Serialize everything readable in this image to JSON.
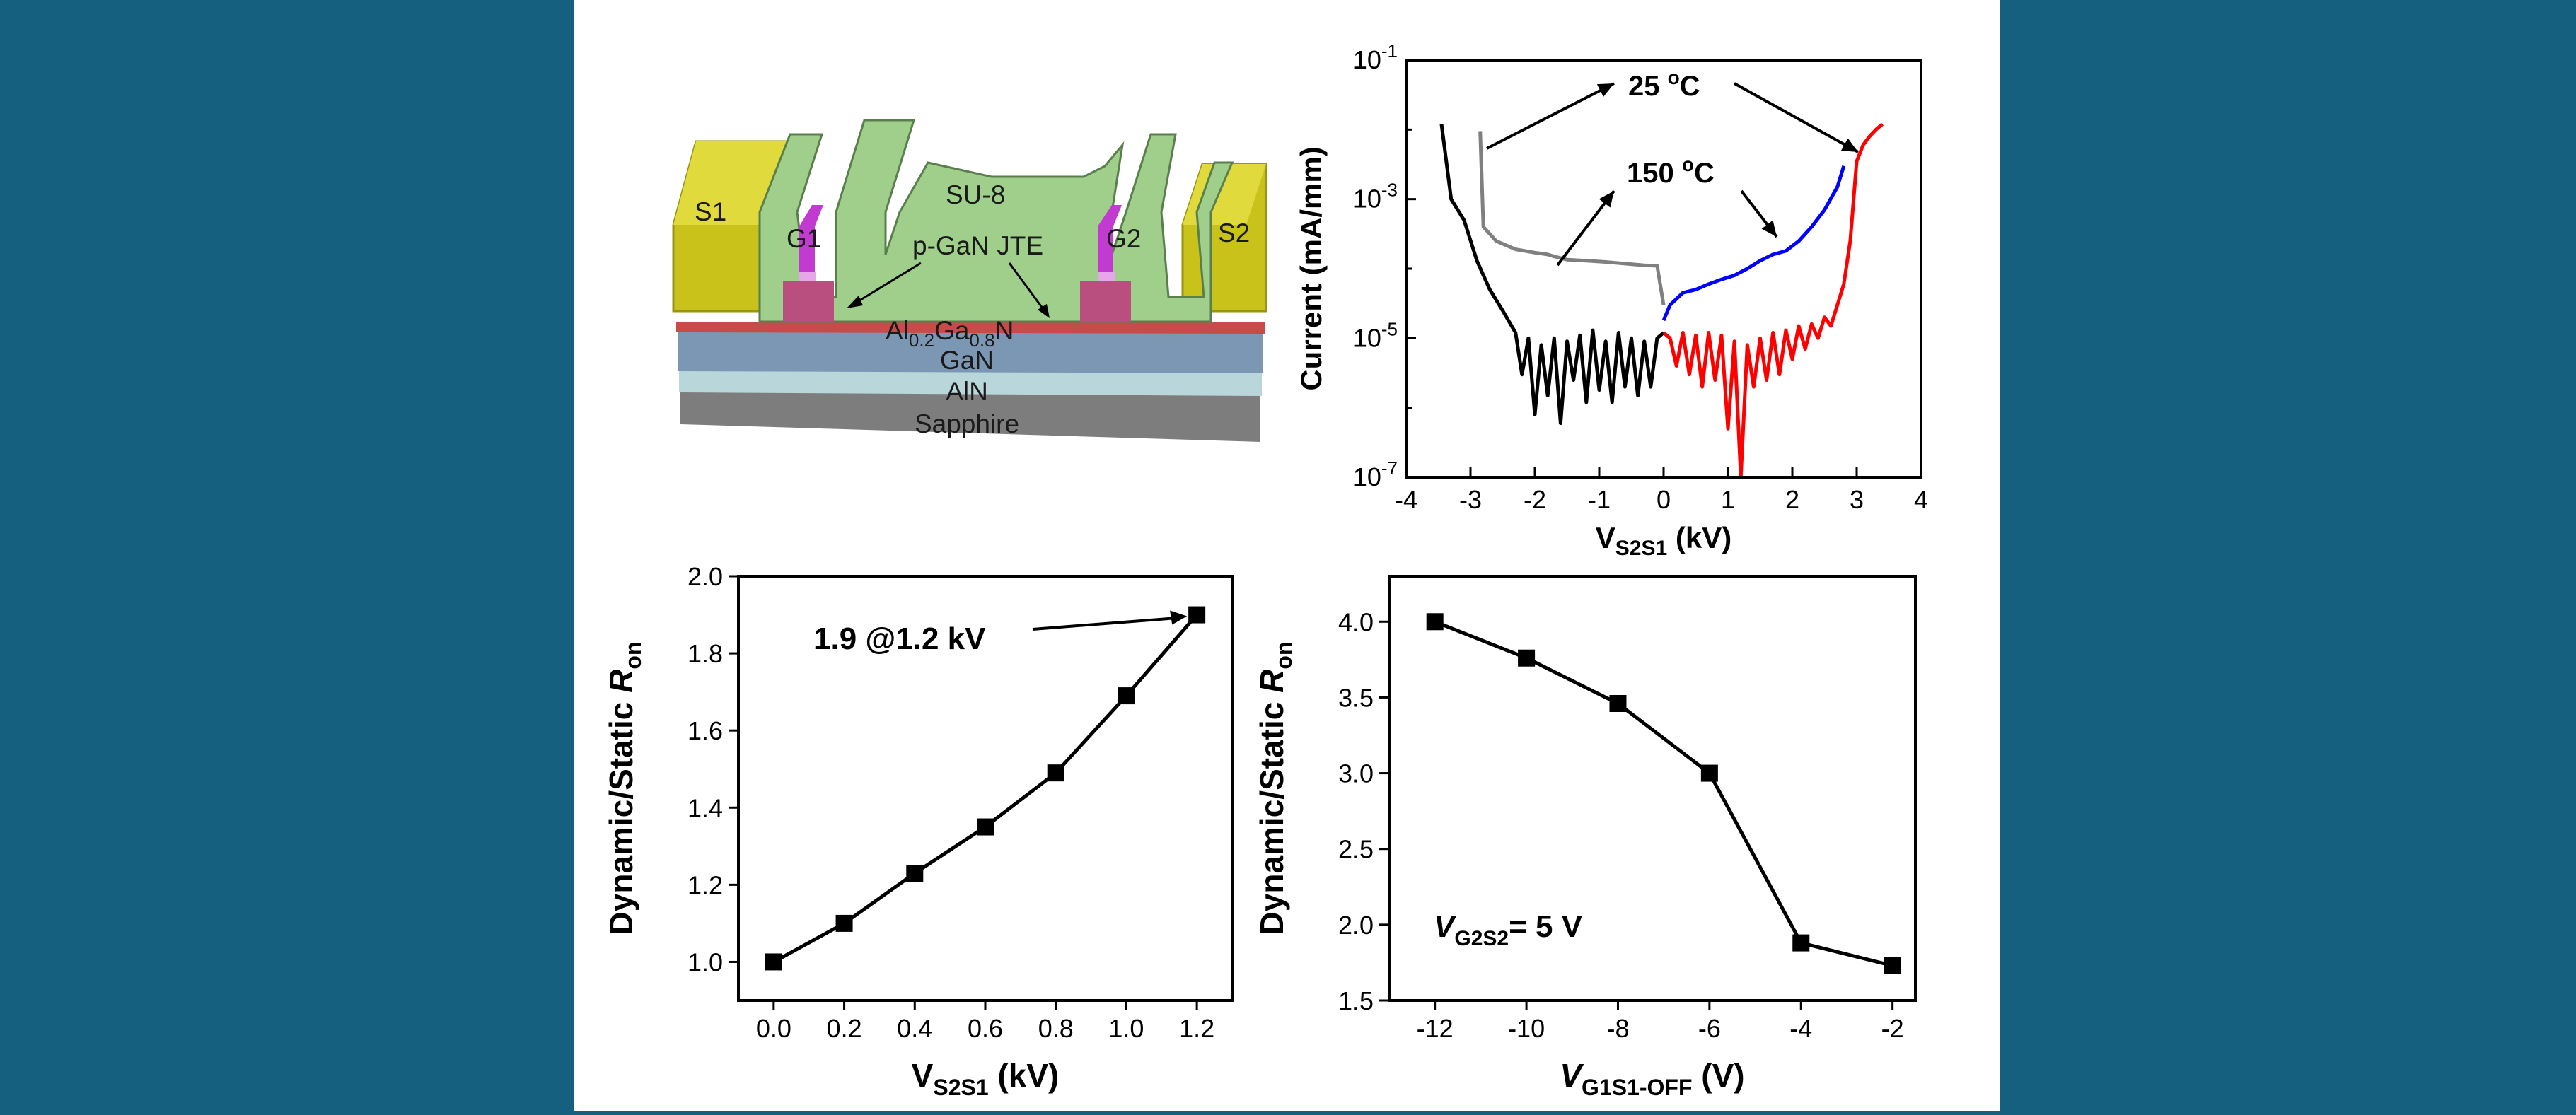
{
  "colors": {
    "background": "#16607f",
    "panel": "#ffffff",
    "s_electrode": "#c8c21a",
    "su8": "#9fcf8a",
    "p_gan": "#b84f7e",
    "gate": "#c23bd0",
    "algan": "#c74b4b",
    "gan": "#7b97b3",
    "aln": "#b9d6da",
    "sapphire": "#7d7d7d",
    "series_25c_gray": "#808080",
    "series_25c_black": "#000000",
    "series_150c_blue": "#0000ff",
    "series_150c_red": "#ff0000"
  },
  "device": {
    "labels": {
      "s1": "S1",
      "s2": "S2",
      "g1": "G1",
      "g2": "G2",
      "su8": "SU-8",
      "pgan_jte": "p-GaN JTE",
      "algan_base": "Al",
      "algan_sub1": "0.2",
      "algan_mid": "Ga",
      "algan_sub2": "0.8",
      "algan_end": "N",
      "gan": "GaN",
      "aln": "AlN",
      "sapphire": "Sapphire"
    }
  },
  "chart_data": [
    {
      "type": "line",
      "id": "iv",
      "xlabel_main": "V",
      "xlabel_sub": "S2S1",
      "xlabel_unit": " (kV)",
      "ylabel": "Current (mA/mm)",
      "xlim": [
        -4,
        4
      ],
      "ylim_log10": [
        -7,
        -1
      ],
      "y_scale": "log",
      "x_ticks": [
        "-4",
        "-3",
        "-2",
        "-1",
        "0",
        "1",
        "2",
        "3",
        "4"
      ],
      "y_ticks": [
        {
          "base": "10",
          "exp": "-1"
        },
        {
          "base": "10",
          "exp": "-3"
        },
        {
          "base": "10",
          "exp": "-5"
        },
        {
          "base": "10",
          "exp": "-7"
        }
      ],
      "annotations": {
        "t25": "25 ",
        "t150": "150 ",
        "deg": "o",
        "unit": "C"
      },
      "series": [
        {
          "color": "#808080",
          "x": [
            -2.85,
            -2.8,
            -2.6,
            -2.3,
            -2.0,
            -1.8,
            -1.7,
            -1.5,
            -1.2,
            -0.9,
            -0.6,
            -0.3,
            -0.1,
            0.0
          ],
          "y": [
            0.0095,
            0.0004,
            0.00025,
            0.00019,
            0.00017,
            0.00016,
            0.00015,
            0.000135,
            0.00013,
            0.000125,
            0.000118,
            0.000112,
            0.00011,
            3e-05
          ]
        },
        {
          "color": "#000000",
          "x": [
            -3.45,
            -3.3,
            -3.1,
            -2.9,
            -2.7,
            -2.5,
            -2.3,
            -2.2,
            -2.1,
            -2.0,
            -1.9,
            -1.8,
            -1.7,
            -1.6,
            -1.5,
            -1.4,
            -1.3,
            -1.2,
            -1.1,
            -1.0,
            -0.9,
            -0.8,
            -0.7,
            -0.6,
            -0.5,
            -0.4,
            -0.3,
            -0.2,
            -0.1,
            0.0
          ],
          "y": [
            0.012,
            0.001,
            0.0005,
            0.00013,
            5e-05,
            2.5e-05,
            1.2e-05,
            3e-06,
            1e-05,
            8e-07,
            8e-06,
            1.5e-06,
            1e-05,
            6e-07,
            9e-06,
            2.5e-06,
            1.1e-05,
            1.2e-06,
            1.3e-05,
            1.8e-06,
            9e-06,
            1.2e-06,
            1.2e-05,
            2e-06,
            1e-05,
            1.5e-06,
            9e-06,
            2e-06,
            1e-05,
            1.2e-05
          ]
        },
        {
          "color": "#0000ff",
          "x": [
            0.0,
            0.1,
            0.3,
            0.5,
            0.7,
            0.9,
            1.1,
            1.3,
            1.5,
            1.7,
            1.9,
            2.1,
            2.3,
            2.5,
            2.7,
            2.8
          ],
          "y": [
            1.8e-05,
            3e-05,
            4.5e-05,
            5e-05,
            6e-05,
            7e-05,
            8e-05,
            0.0001,
            0.00013,
            0.00016,
            0.00018,
            0.00025,
            0.0004,
            0.0007,
            0.0015,
            0.003
          ]
        },
        {
          "color": "#ff0000",
          "x": [
            0.0,
            0.1,
            0.2,
            0.3,
            0.4,
            0.5,
            0.6,
            0.7,
            0.8,
            0.9,
            1.0,
            1.1,
            1.2,
            1.3,
            1.4,
            1.5,
            1.6,
            1.7,
            1.8,
            1.9,
            2.0,
            2.1,
            2.2,
            2.3,
            2.4,
            2.5,
            2.6,
            2.7,
            2.8,
            2.9,
            3.0,
            3.1,
            3.2,
            3.3,
            3.4
          ],
          "y": [
            1.2e-05,
            1e-05,
            4e-06,
            1.2e-05,
            3e-06,
            1.1e-05,
            2e-06,
            1.2e-05,
            2.5e-06,
            1.1e-05,
            5e-07,
            9e-06,
            1e-07,
            8e-06,
            2e-06,
            1e-05,
            2.5e-06,
            1.2e-05,
            3e-06,
            1.3e-05,
            5e-06,
            1.5e-05,
            7e-06,
            1.6e-05,
            1e-05,
            2e-05,
            1.5e-05,
            3e-05,
            6e-05,
            0.00025,
            0.0035,
            0.006,
            0.008,
            0.01,
            0.012
          ]
        }
      ]
    },
    {
      "type": "line",
      "id": "dyn_vs",
      "xlabel_main": "V",
      "xlabel_sub": "S2S1",
      "xlabel_unit": " (kV)",
      "ylabel_main": "Dynamic/Static ",
      "ylabel_italic": "R",
      "ylabel_sub": "on",
      "xlim": [
        -0.1,
        1.3
      ],
      "ylim": [
        0.9,
        2.0
      ],
      "x_ticks": [
        "0.0",
        "0.2",
        "0.4",
        "0.6",
        "0.8",
        "1.0",
        "1.2"
      ],
      "x_tick_values": [
        0.0,
        0.2,
        0.4,
        0.6,
        0.8,
        1.0,
        1.2
      ],
      "y_ticks": [
        "1.0",
        "1.2",
        "1.4",
        "1.6",
        "1.8",
        "2.0"
      ],
      "y_tick_values": [
        1.0,
        1.2,
        1.4,
        1.6,
        1.8,
        2.0
      ],
      "x": [
        0.0,
        0.2,
        0.4,
        0.6,
        0.8,
        1.0,
        1.2
      ],
      "y": [
        1.0,
        1.1,
        1.23,
        1.35,
        1.49,
        1.69,
        1.9
      ],
      "annotation": "1.9 @1.2 kV"
    },
    {
      "type": "line",
      "id": "dyn_vg",
      "xlabel_italic": "V",
      "xlabel_sub": "G1S1-OFF",
      "xlabel_unit": " (V)",
      "ylabel_main": "Dynamic/Static ",
      "ylabel_italic": "R",
      "ylabel_sub": "on",
      "xlim": [
        -13,
        -1.5
      ],
      "ylim": [
        1.5,
        4.3
      ],
      "x_ticks": [
        "-12",
        "-10",
        "-8",
        "-6",
        "-4",
        "-2"
      ],
      "x_tick_values": [
        -12,
        -10,
        -8,
        -6,
        -4,
        -2
      ],
      "y_ticks": [
        "1.5",
        "2.0",
        "2.5",
        "3.0",
        "3.5",
        "4.0"
      ],
      "y_tick_values": [
        1.5,
        2.0,
        2.5,
        3.0,
        3.5,
        4.0
      ],
      "x": [
        -12,
        -10,
        -8,
        -6,
        -4,
        -2
      ],
      "y": [
        4.0,
        3.76,
        3.46,
        3.0,
        1.88,
        1.73
      ],
      "annotation_italic": "V",
      "annotation_sub": "G2S2",
      "annotation_rest": "= 5 V"
    }
  ]
}
